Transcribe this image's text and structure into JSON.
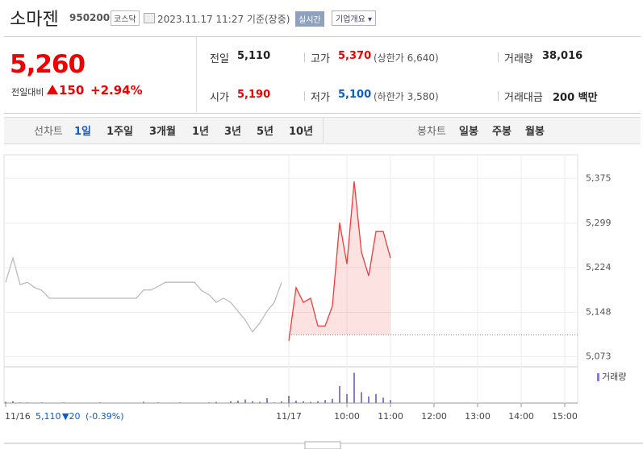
{
  "header": {
    "title": "소마젠",
    "code": "950200",
    "market": "코스닥",
    "date": "2023.11.17 11:27 기준(장중)",
    "realtime": "실시간",
    "company": "기업개요"
  },
  "quote": {
    "price": "5,260",
    "change_label": "전일대비",
    "change": "150",
    "rate": "+2.94%",
    "stats": [
      {
        "label": "전일",
        "value": "5,110",
        "color": "#222"
      },
      {
        "label": "고가",
        "value": "5,370",
        "note": "(상한가 6,640)",
        "color": "#e00"
      },
      {
        "label": "거래량",
        "value": "38,016",
        "color": "#222"
      },
      {
        "label": "시가",
        "value": "5,190",
        "color": "#e00"
      },
      {
        "label": "저가",
        "value": "5,100",
        "note": "(하한가 3,580)",
        "color": "#0a5cc6"
      },
      {
        "label": "거래대금",
        "value": "200 백만",
        "color": "#222"
      }
    ]
  },
  "tabs": {
    "line_label": "선차트",
    "line_items": [
      "1일",
      "1주일",
      "3개월",
      "1년",
      "3년",
      "5년",
      "10년"
    ],
    "active": 0,
    "candle_label": "봉차트",
    "candle_items": [
      "일봉",
      "주봉",
      "월봉"
    ]
  },
  "chart_data": {
    "type": "line",
    "categories": [
      "11/16",
      null,
      null,
      null,
      null,
      null,
      null,
      null,
      null,
      null,
      null,
      null,
      null,
      null,
      null,
      null,
      null,
      null,
      null,
      null,
      null,
      null,
      null,
      null,
      null,
      null,
      null,
      null,
      null,
      null,
      null,
      null,
      null,
      null,
      null,
      null,
      null,
      null,
      null,
      "11/17",
      null,
      null,
      null,
      null,
      null,
      null,
      null,
      "10:00",
      null,
      null,
      null,
      null,
      null,
      "11:00",
      null,
      null,
      null,
      null,
      null,
      "12:00",
      null,
      null,
      null,
      null,
      null,
      "13:00",
      null,
      null,
      null,
      null,
      null,
      "14:00",
      null,
      null,
      null,
      null,
      null,
      "15:00",
      null,
      null
    ],
    "series": [
      {
        "color": "#bbbbbb",
        "fill": false,
        "values": [
          5199,
          5240,
          5195,
          5199,
          5190,
          5185,
          5172,
          5172,
          5172,
          5172,
          5172,
          5172,
          5172,
          5172,
          5172,
          5172,
          5172,
          5172,
          5172,
          5186,
          5186,
          5192,
          5199,
          5199,
          5199,
          5199,
          5199,
          5185,
          5178,
          5165,
          5172,
          5165,
          5150,
          5135,
          5115,
          5130,
          5150,
          5165,
          5199,
          null,
          null,
          null,
          null,
          null,
          null,
          null,
          null,
          null,
          null,
          null,
          null,
          null,
          null,
          null,
          null,
          null,
          null,
          null,
          null,
          null,
          null,
          null,
          null,
          null,
          null,
          null,
          null,
          null,
          null,
          null,
          null,
          null,
          null,
          null,
          null,
          null,
          null,
          null,
          null,
          null
        ]
      },
      {
        "color": "#f03c3c",
        "fill": true,
        "values": [
          null,
          null,
          null,
          null,
          null,
          null,
          null,
          null,
          null,
          null,
          null,
          null,
          null,
          null,
          null,
          null,
          null,
          null,
          null,
          null,
          null,
          null,
          null,
          null,
          null,
          null,
          null,
          null,
          null,
          null,
          null,
          null,
          null,
          null,
          null,
          null,
          null,
          null,
          null,
          5100,
          5190,
          5165,
          5172,
          5125,
          5125,
          5159,
          5300,
          5230,
          5370,
          5250,
          5210,
          5285,
          5285,
          5240,
          null,
          null,
          null,
          null,
          null,
          null,
          null,
          null,
          null,
          null,
          null,
          null,
          null,
          null,
          null,
          null,
          null,
          null,
          null,
          null,
          null,
          null,
          null,
          null,
          null,
          null
        ]
      }
    ],
    "baseline": 5110,
    "ylim": [
      5060,
      5415
    ],
    "yticks": [
      {
        "value": 5375,
        "label": "5,375"
      },
      {
        "value": 5299,
        "label": "5,299"
      },
      {
        "value": 5224,
        "label": "5,224"
      },
      {
        "value": 5148,
        "label": "5,148"
      },
      {
        "value": 5073,
        "label": "5,073"
      }
    ],
    "grid": true,
    "volume": {
      "name": "거래량",
      "color": "#8e7cc3",
      "vlim": [
        0,
        6000
      ],
      "values": [
        200,
        300,
        100,
        100,
        0,
        100,
        0,
        0,
        100,
        0,
        0,
        0,
        0,
        100,
        0,
        0,
        0,
        0,
        0,
        200,
        0,
        100,
        0,
        0,
        100,
        0,
        0,
        0,
        100,
        200,
        0,
        300,
        400,
        600,
        300,
        200,
        800,
        100,
        300,
        1200,
        400,
        300,
        200,
        300,
        500,
        700,
        2800,
        1500,
        5000,
        1800,
        1100,
        1500,
        900,
        500,
        null,
        null,
        null,
        null,
        null,
        null,
        null,
        null,
        null,
        null,
        null,
        null,
        null,
        null,
        null,
        null,
        null,
        null,
        null,
        null,
        null,
        null,
        null,
        null,
        null,
        null
      ]
    },
    "prev_close": "5,110",
    "prev_change": "▼20",
    "prev_rate": "(-0.39%)"
  }
}
